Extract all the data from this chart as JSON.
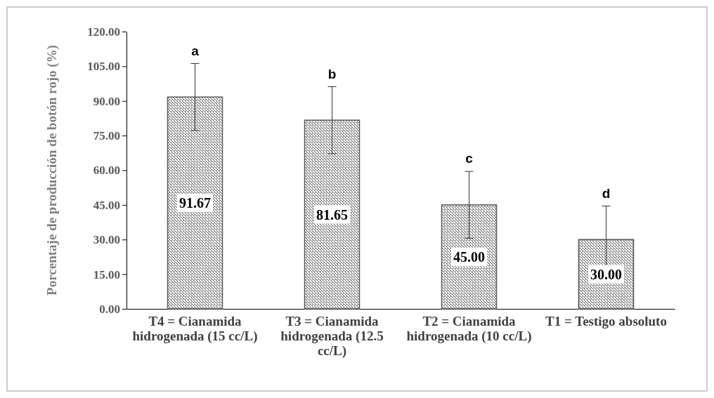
{
  "chart_data": {
    "type": "bar",
    "ylabel": "Porcentaje de producción de botón rojo (%)",
    "categories": [
      "T4 = Cianamida hidrogenada (15 cc/L)",
      "T3 = Cianamida hidrogenada (12.5 cc/L)",
      "T2 = Cianamida hidrogenada (10 cc/L)",
      "T1 = Testigo absoluto"
    ],
    "values": [
      91.67,
      81.65,
      45.0,
      30.0
    ],
    "value_labels": [
      "91.67",
      "81.65",
      "45.00",
      "30.00"
    ],
    "errors": [
      14.5,
      14.5,
      14.5,
      14.5
    ],
    "color": "#595959",
    "ylim": [
      0,
      120
    ],
    "yticks": [
      {
        "value": 0,
        "label": "0.00"
      },
      {
        "value": 15,
        "label": "15.00"
      },
      {
        "value": 30,
        "label": "30.00"
      },
      {
        "value": 45,
        "label": "45.00"
      },
      {
        "value": 60,
        "label": "60.00"
      },
      {
        "value": 75,
        "label": "75.00"
      },
      {
        "value": 90,
        "label": "90.00"
      },
      {
        "value": 105,
        "label": "105.00"
      },
      {
        "value": 120,
        "label": "120.00"
      }
    ],
    "annotations": [
      {
        "text": "a",
        "x": "T4 = Cianamida hidrogenada (15 cc/L)",
        "y": 106.17
      },
      {
        "text": "b",
        "x": "T3 = Cianamida hidrogenada (12.5 cc/L)",
        "y": 96.15
      },
      {
        "text": "c",
        "x": "T2 = Cianamida hidrogenada (10 cc/L)",
        "y": 59.5
      },
      {
        "text": "d",
        "x": "T1 = Testigo absoluto",
        "y": 44.5
      }
    ],
    "grid": false
  }
}
